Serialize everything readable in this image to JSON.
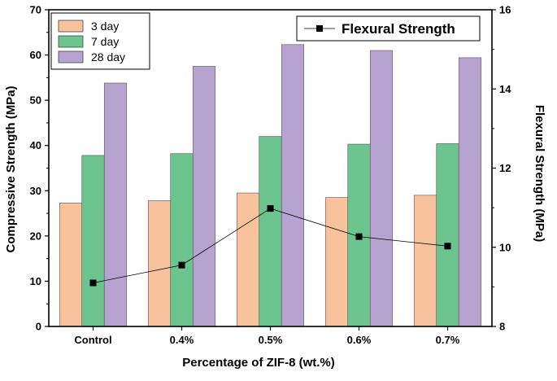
{
  "chart_data": {
    "type": "bar",
    "categories": [
      "Control",
      "0.4%",
      "0.5%",
      "0.6%",
      "0.7%"
    ],
    "series": [
      {
        "name": "3 day",
        "axis": "left",
        "values": [
          27.3,
          27.8,
          29.5,
          28.5,
          29.0
        ],
        "color": "#f8c39c"
      },
      {
        "name": "7 day",
        "axis": "left",
        "values": [
          37.8,
          38.2,
          42.0,
          40.3,
          40.4
        ],
        "color": "#6cc48e"
      },
      {
        "name": "28 day",
        "axis": "left",
        "values": [
          53.8,
          57.5,
          62.3,
          61.0,
          59.4
        ],
        "color": "#b6a3cf"
      }
    ],
    "line_series": {
      "name": "Flexural Strength",
      "type": "line",
      "axis": "right",
      "values": [
        9.1,
        9.55,
        10.98,
        10.27,
        10.03
      ],
      "color": "#000000"
    },
    "xlabel": "Percentage of ZIF-8 (wt.%)",
    "ylabel": "Compressive Strength (MPa)",
    "y2label": "Flexural Strength (MPa)",
    "ylim": [
      0,
      70
    ],
    "y2lim": [
      8,
      16
    ],
    "yticks": [
      "0",
      "10",
      "20",
      "30",
      "40",
      "50",
      "60",
      "70"
    ],
    "y2ticks": [
      "8",
      "10",
      "12",
      "14",
      "16"
    ],
    "legend_bars_position": "top-left",
    "legend_line_position": "top-right",
    "grid": false
  }
}
